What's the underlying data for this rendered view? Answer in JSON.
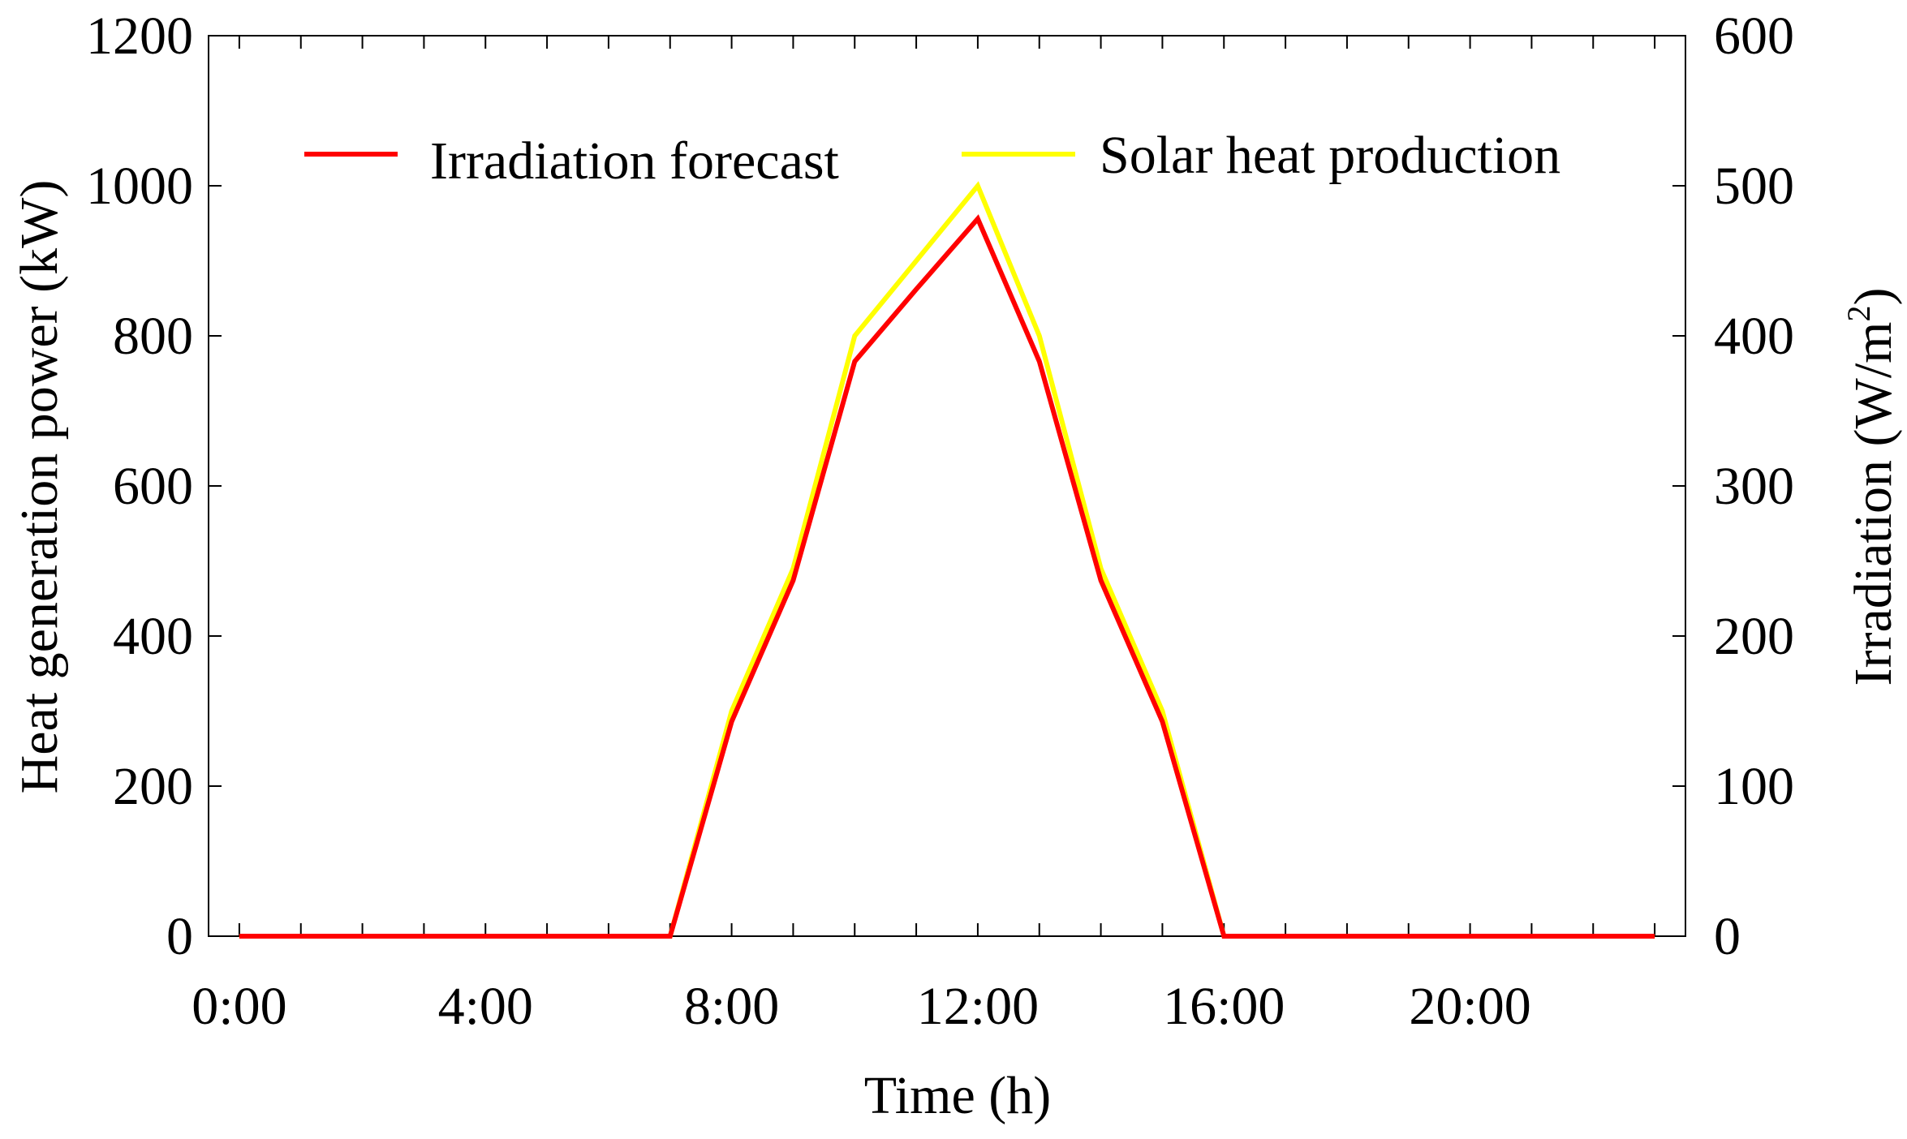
{
  "chart_data": {
    "type": "line",
    "title": "",
    "xlabel": "Time (h)",
    "ylabel_left": "Heat generation power (kW)",
    "ylabel_right": "Irradiation (W/m²)",
    "ylabel_right_text": "Irradiation (W/m",
    "ylabel_right_sup": "2",
    "ylabel_right_close": ")",
    "x_hours": [
      0,
      1,
      2,
      3,
      4,
      5,
      6,
      7,
      8,
      9,
      10,
      11,
      12,
      13,
      14,
      15,
      16,
      17,
      18,
      19,
      20,
      21,
      22,
      23
    ],
    "xlim": [
      -0.5,
      23.5
    ],
    "x_ticks": [
      0,
      1,
      2,
      3,
      4,
      5,
      6,
      7,
      8,
      9,
      10,
      11,
      12,
      13,
      14,
      15,
      16,
      17,
      18,
      19,
      20,
      21,
      22,
      23
    ],
    "x_tick_labels": [
      {
        "hour": 0,
        "label": "0:00"
      },
      {
        "hour": 4,
        "label": "4:00"
      },
      {
        "hour": 8,
        "label": "8:00"
      },
      {
        "hour": 12,
        "label": "12:00"
      },
      {
        "hour": 16,
        "label": "16:00"
      },
      {
        "hour": 20,
        "label": "20:00"
      }
    ],
    "ylim_left": [
      0,
      1200
    ],
    "ylim_right": [
      0,
      600
    ],
    "y_ticks_left": [
      "0",
      "200",
      "400",
      "600",
      "800",
      "1000",
      "1200"
    ],
    "y_ticks_right": [
      "0",
      "100",
      "200",
      "300",
      "400",
      "500",
      "600"
    ],
    "grid": false,
    "legend_position": "top",
    "series": [
      {
        "name": "Irradiation forecast",
        "axis": "right",
        "color": "#ff0000",
        "values": [
          0,
          0,
          0,
          0,
          0,
          0,
          0,
          0,
          143,
          237,
          383,
          431,
          478,
          383,
          237,
          143,
          0,
          0,
          0,
          0,
          0,
          0,
          0,
          0
        ]
      },
      {
        "name": "Solar heat production",
        "axis": "left",
        "color": "#ffff00",
        "values": [
          0,
          0,
          0,
          0,
          0,
          0,
          0,
          0,
          300,
          490,
          800,
          900,
          1000,
          800,
          490,
          300,
          0,
          0,
          0,
          0,
          0,
          0,
          0,
          0
        ]
      }
    ]
  }
}
